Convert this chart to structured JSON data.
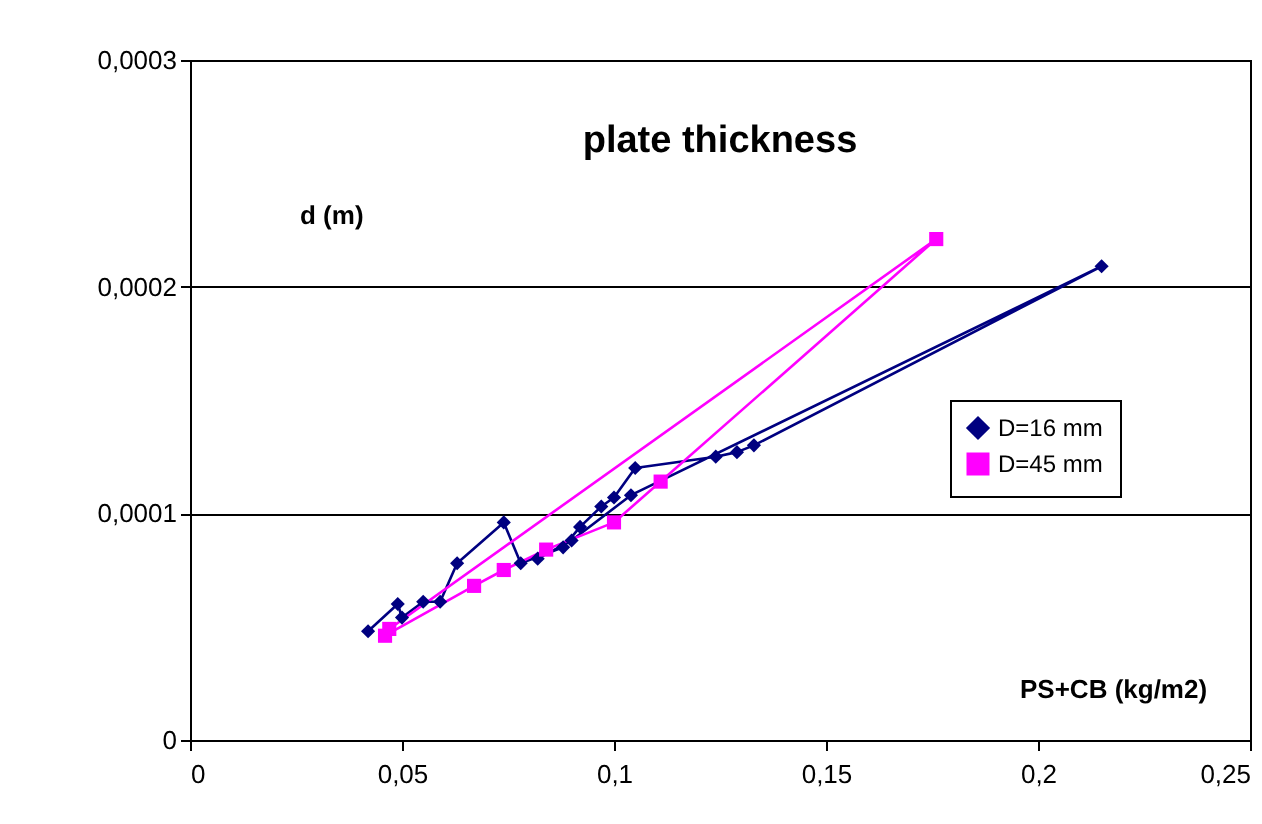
{
  "chart_data": {
    "type": "line",
    "title": "plate thickness",
    "xlabel": "PS+CB (kg/m2)",
    "ylabel": "d (m)",
    "xlim": [
      0,
      0.25
    ],
    "xticks": [
      {
        "value": 0,
        "label": "0"
      },
      {
        "value": 0.05,
        "label": "0,05"
      },
      {
        "value": 0.1,
        "label": "0,1"
      },
      {
        "value": 0.15,
        "label": "0,15"
      },
      {
        "value": 0.2,
        "label": "0,2"
      },
      {
        "value": 0.25,
        "label": "0,25"
      }
    ],
    "ylim": [
      0,
      0.0003
    ],
    "yticks": [
      {
        "value": 0,
        "label": "0"
      },
      {
        "value": 0.0001,
        "label": "0,0001"
      },
      {
        "value": 0.0002,
        "label": "0,0002"
      },
      {
        "value": 0.0003,
        "label": "0,0003"
      }
    ],
    "grid": "y",
    "legend": "right",
    "line_style": "solid",
    "series": [
      {
        "name": "D=16 mm",
        "color": "#000080",
        "marker": "diamond",
        "x": [
          0.042,
          0.049,
          0.05,
          0.055,
          0.059,
          0.063,
          0.074,
          0.078,
          0.088,
          0.092,
          0.097,
          0.1,
          0.105,
          0.124,
          0.129,
          0.133,
          0.215,
          0.104,
          0.09,
          0.082
        ],
        "values": [
          4.8e-05,
          6e-05,
          5.4e-05,
          6.1e-05,
          6.1e-05,
          7.8e-05,
          9.6e-05,
          7.8e-05,
          8.5e-05,
          9.4e-05,
          0.000103,
          0.000107,
          0.00012,
          0.000125,
          0.000127,
          0.00013,
          0.000209,
          0.000108,
          8.8e-05,
          8e-05
        ]
      },
      {
        "name": "D=45 mm",
        "color": "#ff00ff",
        "marker": "square",
        "x": [
          0.046,
          0.067,
          0.074,
          0.084,
          0.1,
          0.111,
          0.176,
          0.047
        ],
        "values": [
          4.6e-05,
          6.8e-05,
          7.5e-05,
          8.4e-05,
          9.6e-05,
          0.000114,
          0.000221,
          4.9e-05
        ]
      }
    ]
  }
}
